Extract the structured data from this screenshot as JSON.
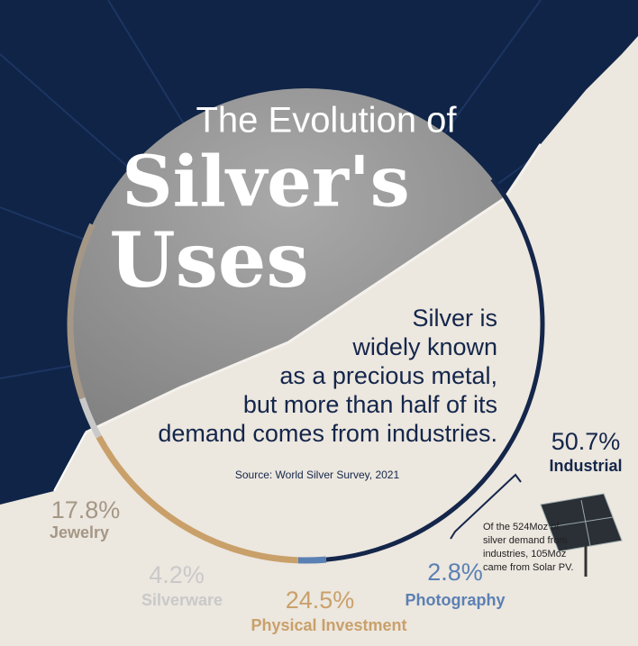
{
  "chart_data": {
    "type": "donut",
    "title_lines": [
      "The Evolution of",
      "Silver's",
      "Uses"
    ],
    "description_lines": [
      "Silver is",
      "widely known",
      "as a precious metal,",
      "but more than half of its",
      "demand comes from industries."
    ],
    "source": "Source: World Silver Survey, 2021",
    "note_lines": [
      "Of the 524Moz of",
      "silver demand from",
      "industries, 105Moz",
      "came from Solar PV."
    ],
    "categories": [
      "Industrial",
      "Photography",
      "Physical Investment",
      "Silverware",
      "Jewelry"
    ],
    "values": [
      50.7,
      2.8,
      24.5,
      4.2,
      17.8
    ],
    "value_labels": [
      "50.7%",
      "2.8%",
      "24.5%",
      "4.2%",
      "17.8%"
    ],
    "colors": [
      "#14264a",
      "#5b80b3",
      "#c9a06a",
      "#c9c9c9",
      "#a59786"
    ]
  }
}
